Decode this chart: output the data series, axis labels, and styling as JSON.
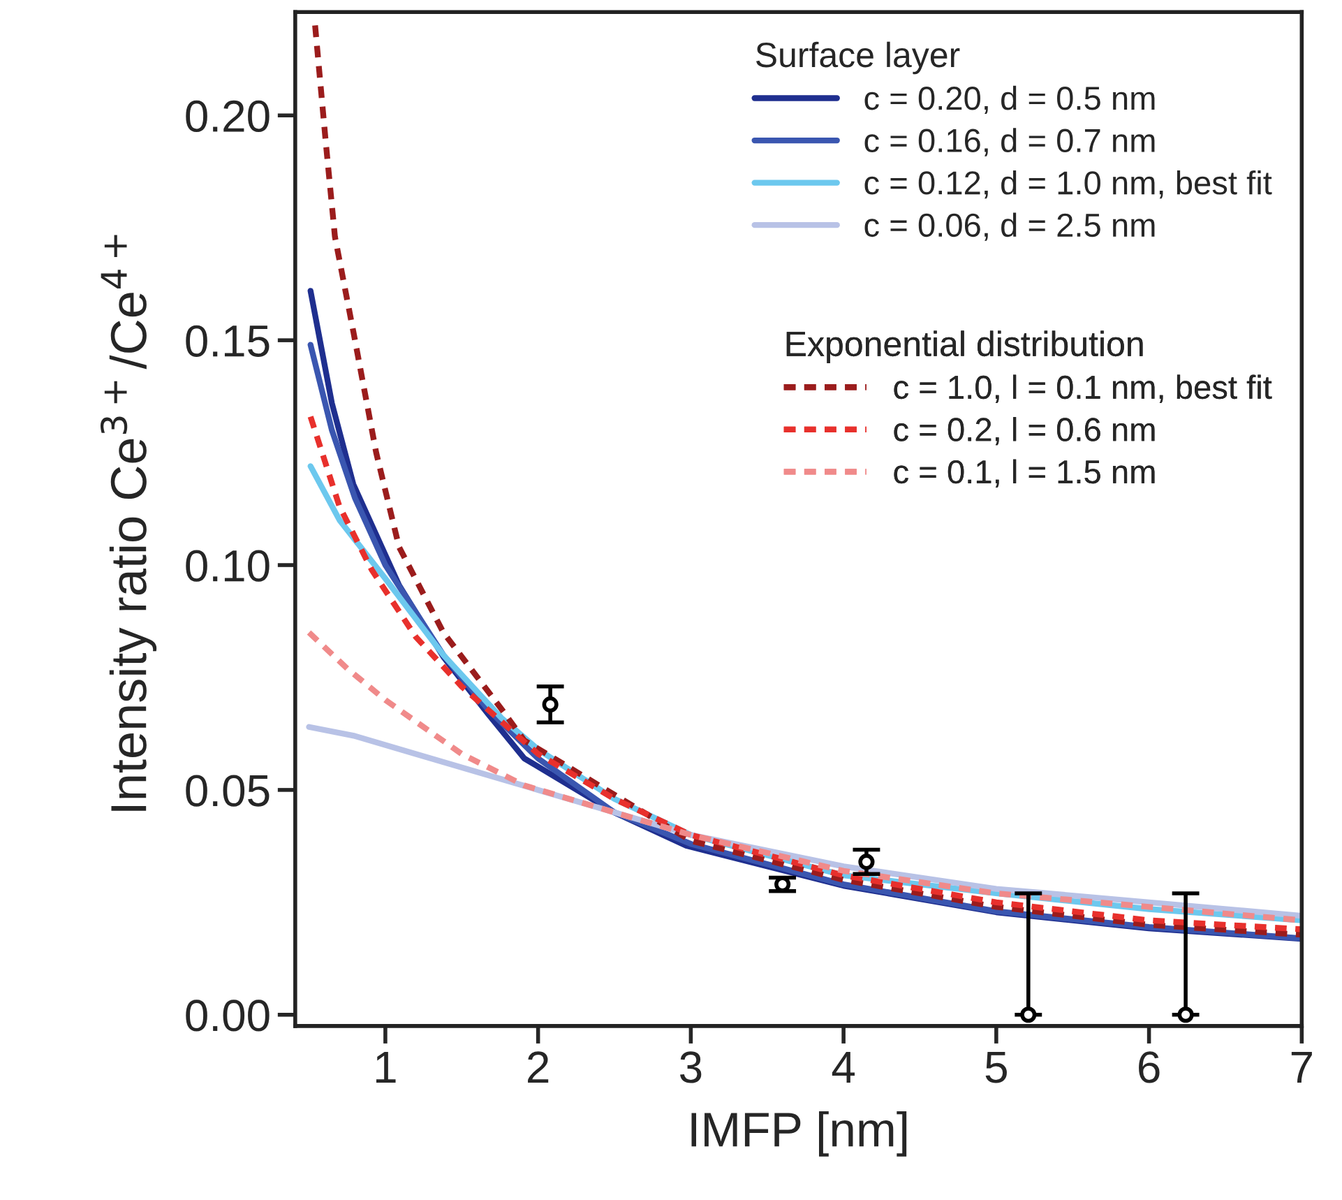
{
  "chart_data": {
    "type": "line",
    "xlabel": "IMFP [nm]",
    "ylabel": "Intensity ratio Ce$^{3+}$/Ce$^{4+}$",
    "legend_title": [
      "Surface layer",
      "Exponential distribution"
    ],
    "xlim": [
      0.41,
      7.0
    ],
    "ylim": [
      -0.0025,
      0.223
    ],
    "xticks": [
      1,
      2,
      3,
      4,
      5,
      6,
      7
    ],
    "yticks": [
      {
        "value": 0,
        "label": "0.00"
      },
      {
        "value": 0.05,
        "label": "0.05"
      },
      {
        "value": 0.1,
        "label": "0.10"
      },
      {
        "value": 0.15,
        "label": "0.15"
      },
      {
        "value": 0.2,
        "label": "0.20"
      }
    ],
    "grid": false,
    "legend": "top right",
    "series": [
      {
        "name": "c = 0.20, d = 0.5 nm",
        "color": "#1f2f8f",
        "line_style": "solid",
        "x": [
          0.51,
          0.65,
          0.79,
          1.09,
          1.38,
          1.67,
          1.91,
          2.5,
          2.97,
          4,
          5,
          6,
          7
        ],
        "values": [
          0.161,
          0.136,
          0.118,
          0.0955,
          0.0796,
          0.067,
          0.057,
          0.045,
          0.0376,
          0.0287,
          0.0228,
          0.0192,
          0.0169
        ]
      },
      {
        "name": "c = 0.16, d = 0.7 nm",
        "color": "#3a56b0",
        "line_style": "solid",
        "x": [
          0.51,
          0.65,
          0.8,
          1.0,
          1.38,
          1.67,
          2,
          2.5,
          3,
          4,
          5,
          6,
          7
        ],
        "values": [
          0.149,
          0.13,
          0.115,
          0.1,
          0.08,
          0.068,
          0.057,
          0.045,
          0.038,
          0.029,
          0.023,
          0.0195,
          0.017
        ]
      },
      {
        "name": "c = 0.12, d = 1.0 nm, best fit",
        "color": "#6cc8ee",
        "line_style": "solid",
        "x": [
          0.51,
          0.7,
          1.0,
          1.38,
          1.76,
          2,
          2.5,
          3,
          4,
          5,
          6,
          7
        ],
        "values": [
          0.122,
          0.11,
          0.097,
          0.08,
          0.066,
          0.059,
          0.048,
          0.04,
          0.031,
          0.027,
          0.0235,
          0.021
        ]
      },
      {
        "name": "c = 0.06, d = 2.5 nm",
        "color": "#b8c2e6",
        "line_style": "solid",
        "x": [
          0.5,
          0.8,
          1.2,
          1.5,
          2,
          2.5,
          3,
          4,
          5,
          6,
          7
        ],
        "values": [
          0.064,
          0.062,
          0.058,
          0.055,
          0.05,
          0.045,
          0.04,
          0.033,
          0.028,
          0.025,
          0.022
        ]
      },
      {
        "name": "c = 1.0, l = 0.1 nm, best fit",
        "color": "#9b1c1c",
        "line_style": "dashed",
        "x": [
          0.54,
          0.61,
          0.67,
          0.79,
          0.94,
          1.09,
          1.38,
          1.76,
          1.91,
          3,
          4,
          5,
          6,
          7
        ],
        "values": [
          0.22,
          0.194,
          0.173,
          0.152,
          0.125,
          0.104,
          0.085,
          0.068,
          0.061,
          0.0387,
          0.03,
          0.024,
          0.02,
          0.0178
        ]
      },
      {
        "name": "c = 0.2, l = 0.6 nm",
        "color": "#e8302c",
        "line_style": "dashed",
        "x": [
          0.51,
          0.7,
          0.91,
          1.2,
          1.5,
          2,
          2.5,
          3,
          4,
          5,
          6,
          7
        ],
        "values": [
          0.133,
          0.113,
          0.099,
          0.084,
          0.073,
          0.058,
          0.048,
          0.04,
          0.031,
          0.025,
          0.021,
          0.019
        ]
      },
      {
        "name": "c = 0.1, l = 1.5 nm",
        "color": "#f08a8a",
        "line_style": "dashed",
        "x": [
          0.5,
          0.75,
          1.0,
          1.5,
          1.91,
          2.5,
          3,
          4,
          5,
          6,
          7
        ],
        "values": [
          0.085,
          0.077,
          0.07,
          0.058,
          0.051,
          0.045,
          0.04,
          0.032,
          0.027,
          0.024,
          0.021
        ]
      },
      {
        "type": "scatter",
        "color": "#000000",
        "marker": "circle",
        "x": [
          2.08,
          3.6,
          4.15,
          5.21,
          6.24
        ],
        "values": [
          0.069,
          0.029,
          0.034,
          0.0,
          0.0
        ],
        "errors": [
          0.004,
          0.0015,
          0.0027,
          [
            0,
            0.027
          ],
          [
            0,
            0.027
          ]
        ]
      }
    ]
  }
}
